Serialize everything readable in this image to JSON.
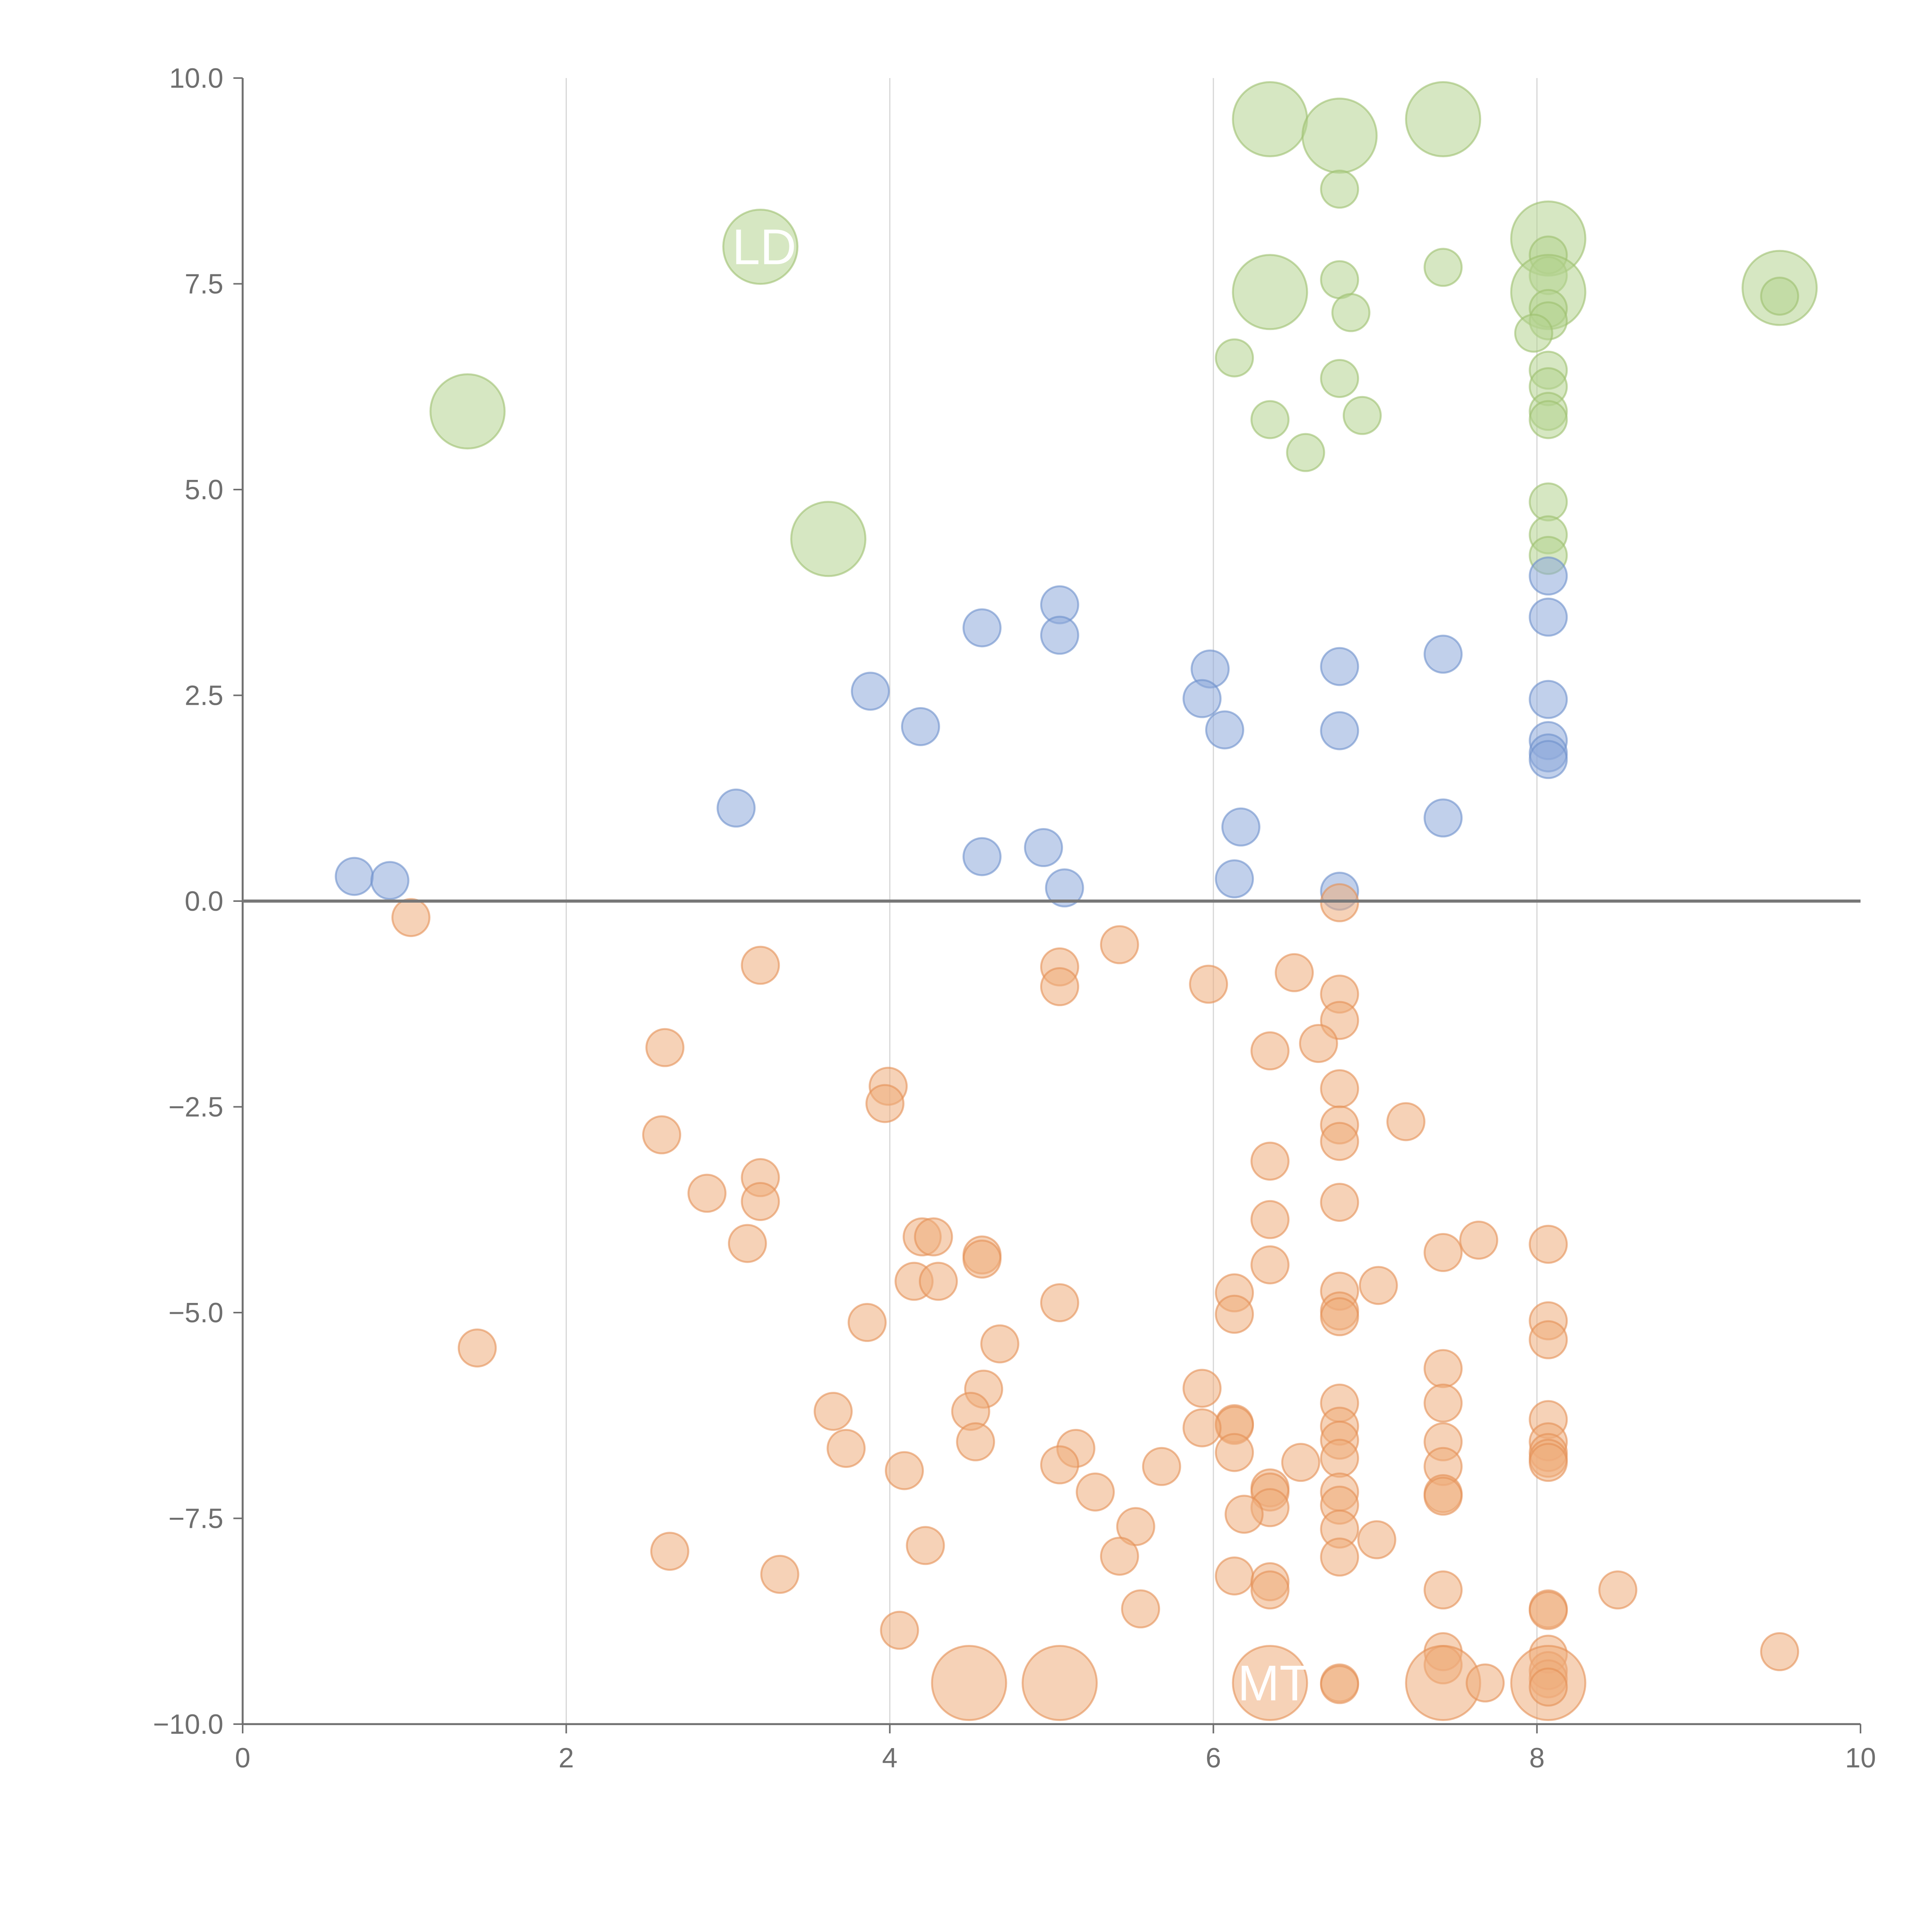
{
  "chart_data": {
    "type": "scatter",
    "title": "",
    "xlabel": "",
    "ylabel": "",
    "xlim": [
      0,
      10
    ],
    "ylim": [
      -10,
      10
    ],
    "x_ticks": [
      0,
      2,
      4,
      6,
      8,
      10
    ],
    "x_tick_labels": [
      "0",
      "2",
      "4",
      "6",
      "8",
      "10"
    ],
    "y_ticks": [
      -10,
      -7.5,
      -5,
      -2.5,
      0,
      2.5,
      5,
      7.5,
      10
    ],
    "y_tick_labels": [
      "−10.0",
      "−7.5",
      "−5.0",
      "−2.5",
      "0.0",
      "2.5",
      "5.0",
      "7.5",
      "10.0"
    ],
    "x_gridlines": [
      2,
      4,
      6,
      8
    ],
    "reference_line_y": 0,
    "colors": {
      "green_fill": "#b5d38f",
      "green_stroke": "#9cc06e",
      "blue_fill": "#8eaadb",
      "blue_stroke": "#6d8fcb",
      "orange_fill": "#eead7c",
      "orange_stroke": "#e48f55"
    },
    "series": [
      {
        "name": "green",
        "color": "#b5d38f",
        "points": [
          {
            "x": 6.35,
            "y": 9.5,
            "r": "lg"
          },
          {
            "x": 6.78,
            "y": 9.3,
            "r": "lg"
          },
          {
            "x": 7.42,
            "y": 9.5,
            "r": "lg"
          },
          {
            "x": 6.78,
            "y": 8.65
          },
          {
            "x": 3.2,
            "y": 7.95,
            "r": "lg"
          },
          {
            "x": 8.07,
            "y": 8.05,
            "r": "lg"
          },
          {
            "x": 8.07,
            "y": 7.85
          },
          {
            "x": 7.42,
            "y": 7.7
          },
          {
            "x": 6.78,
            "y": 7.55
          },
          {
            "x": 8.07,
            "y": 7.6
          },
          {
            "x": 6.35,
            "y": 7.4,
            "r": "lg"
          },
          {
            "x": 8.07,
            "y": 7.4,
            "r": "lg"
          },
          {
            "x": 9.5,
            "y": 7.45,
            "r": "lg"
          },
          {
            "x": 9.5,
            "y": 7.35
          },
          {
            "x": 8.07,
            "y": 7.2
          },
          {
            "x": 6.85,
            "y": 7.15
          },
          {
            "x": 8.07,
            "y": 7.05
          },
          {
            "x": 7.98,
            "y": 6.9
          },
          {
            "x": 6.13,
            "y": 6.6
          },
          {
            "x": 8.07,
            "y": 6.45
          },
          {
            "x": 6.78,
            "y": 6.35
          },
          {
            "x": 8.07,
            "y": 6.25
          },
          {
            "x": 1.39,
            "y": 5.95,
            "r": "lg"
          },
          {
            "x": 6.92,
            "y": 5.9
          },
          {
            "x": 8.07,
            "y": 5.95
          },
          {
            "x": 8.07,
            "y": 5.85
          },
          {
            "x": 6.35,
            "y": 5.85
          },
          {
            "x": 6.57,
            "y": 5.45
          },
          {
            "x": 8.07,
            "y": 4.85
          },
          {
            "x": 3.62,
            "y": 4.4,
            "r": "lg"
          },
          {
            "x": 8.07,
            "y": 4.45
          },
          {
            "x": 8.07,
            "y": 4.2
          }
        ]
      },
      {
        "name": "blue",
        "color": "#8eaadb",
        "points": [
          {
            "x": 8.07,
            "y": 3.95
          },
          {
            "x": 5.05,
            "y": 3.6
          },
          {
            "x": 8.07,
            "y": 3.45
          },
          {
            "x": 4.57,
            "y": 3.32
          },
          {
            "x": 5.05,
            "y": 3.23
          },
          {
            "x": 7.42,
            "y": 3.0
          },
          {
            "x": 6.78,
            "y": 2.85
          },
          {
            "x": 5.98,
            "y": 2.82
          },
          {
            "x": 3.88,
            "y": 2.55
          },
          {
            "x": 5.93,
            "y": 2.46
          },
          {
            "x": 8.07,
            "y": 2.45
          },
          {
            "x": 4.19,
            "y": 2.12
          },
          {
            "x": 6.07,
            "y": 2.08
          },
          {
            "x": 6.78,
            "y": 2.07
          },
          {
            "x": 8.07,
            "y": 1.95
          },
          {
            "x": 8.07,
            "y": 1.8
          },
          {
            "x": 8.07,
            "y": 1.72
          },
          {
            "x": 3.05,
            "y": 1.13
          },
          {
            "x": 7.42,
            "y": 1.01
          },
          {
            "x": 6.17,
            "y": 0.9
          },
          {
            "x": 4.95,
            "y": 0.65
          },
          {
            "x": 4.57,
            "y": 0.54
          },
          {
            "x": 0.69,
            "y": 0.3
          },
          {
            "x": 0.91,
            "y": 0.25
          },
          {
            "x": 6.13,
            "y": 0.27
          },
          {
            "x": 5.08,
            "y": 0.16
          },
          {
            "x": 6.78,
            "y": 0.12
          }
        ]
      },
      {
        "name": "orange",
        "color": "#eead7c",
        "points": [
          {
            "x": 6.78,
            "y": -0.02
          },
          {
            "x": 1.04,
            "y": -0.2
          },
          {
            "x": 5.42,
            "y": -0.53
          },
          {
            "x": 3.2,
            "y": -0.78
          },
          {
            "x": 5.05,
            "y": -0.8
          },
          {
            "x": 6.5,
            "y": -0.87
          },
          {
            "x": 5.97,
            "y": -1.01
          },
          {
            "x": 5.05,
            "y": -1.04
          },
          {
            "x": 6.78,
            "y": -1.13
          },
          {
            "x": 6.78,
            "y": -1.45
          },
          {
            "x": 6.65,
            "y": -1.73
          },
          {
            "x": 2.61,
            "y": -1.78
          },
          {
            "x": 6.35,
            "y": -1.82
          },
          {
            "x": 3.99,
            "y": -2.25
          },
          {
            "x": 6.78,
            "y": -2.28
          },
          {
            "x": 3.97,
            "y": -2.46
          },
          {
            "x": 7.19,
            "y": -2.68
          },
          {
            "x": 6.78,
            "y": -2.72
          },
          {
            "x": 2.59,
            "y": -2.84
          },
          {
            "x": 6.78,
            "y": -2.92
          },
          {
            "x": 6.35,
            "y": -3.16
          },
          {
            "x": 3.2,
            "y": -3.36
          },
          {
            "x": 2.87,
            "y": -3.55
          },
          {
            "x": 3.2,
            "y": -3.65
          },
          {
            "x": 6.78,
            "y": -3.66
          },
          {
            "x": 6.35,
            "y": -3.87
          },
          {
            "x": 4.2,
            "y": -4.08
          },
          {
            "x": 4.27,
            "y": -4.08
          },
          {
            "x": 7.64,
            "y": -4.12
          },
          {
            "x": 3.12,
            "y": -4.16
          },
          {
            "x": 8.07,
            "y": -4.17
          },
          {
            "x": 7.42,
            "y": -4.27
          },
          {
            "x": 4.57,
            "y": -4.3
          },
          {
            "x": 4.57,
            "y": -4.35
          },
          {
            "x": 6.35,
            "y": -4.42
          },
          {
            "x": 4.15,
            "y": -4.62
          },
          {
            "x": 4.3,
            "y": -4.62
          },
          {
            "x": 7.02,
            "y": -4.67
          },
          {
            "x": 6.13,
            "y": -4.76
          },
          {
            "x": 6.78,
            "y": -4.74
          },
          {
            "x": 5.05,
            "y": -4.88
          },
          {
            "x": 6.78,
            "y": -4.98
          },
          {
            "x": 6.78,
            "y": -5.05
          },
          {
            "x": 6.13,
            "y": -5.02
          },
          {
            "x": 8.07,
            "y": -5.1
          },
          {
            "x": 3.86,
            "y": -5.12
          },
          {
            "x": 8.07,
            "y": -5.33
          },
          {
            "x": 4.68,
            "y": -5.38
          },
          {
            "x": 1.45,
            "y": -5.43
          },
          {
            "x": 7.42,
            "y": -5.68
          },
          {
            "x": 5.93,
            "y": -5.92
          },
          {
            "x": 4.58,
            "y": -5.93
          },
          {
            "x": 6.78,
            "y": -6.1
          },
          {
            "x": 7.42,
            "y": -6.1
          },
          {
            "x": 3.65,
            "y": -6.2
          },
          {
            "x": 4.5,
            "y": -6.2
          },
          {
            "x": 8.07,
            "y": -6.3
          },
          {
            "x": 6.13,
            "y": -6.35
          },
          {
            "x": 6.13,
            "y": -6.37
          },
          {
            "x": 6.78,
            "y": -6.38
          },
          {
            "x": 5.93,
            "y": -6.4
          },
          {
            "x": 6.78,
            "y": -6.55
          },
          {
            "x": 4.53,
            "y": -6.57
          },
          {
            "x": 7.42,
            "y": -6.57
          },
          {
            "x": 8.07,
            "y": -6.57
          },
          {
            "x": 3.73,
            "y": -6.65
          },
          {
            "x": 5.15,
            "y": -6.65
          },
          {
            "x": 6.13,
            "y": -6.7
          },
          {
            "x": 8.07,
            "y": -6.7
          },
          {
            "x": 6.78,
            "y": -6.77
          },
          {
            "x": 8.07,
            "y": -6.77
          },
          {
            "x": 8.07,
            "y": -6.82
          },
          {
            "x": 6.54,
            "y": -6.82
          },
          {
            "x": 5.05,
            "y": -6.85
          },
          {
            "x": 5.68,
            "y": -6.87
          },
          {
            "x": 7.42,
            "y": -6.87
          },
          {
            "x": 4.09,
            "y": -6.92
          },
          {
            "x": 6.35,
            "y": -7.13
          },
          {
            "x": 6.35,
            "y": -7.18
          },
          {
            "x": 5.27,
            "y": -7.18
          },
          {
            "x": 6.78,
            "y": -7.18
          },
          {
            "x": 7.42,
            "y": -7.2
          },
          {
            "x": 7.42,
            "y": -7.23
          },
          {
            "x": 6.78,
            "y": -7.34
          },
          {
            "x": 6.35,
            "y": -7.37
          },
          {
            "x": 6.19,
            "y": -7.45
          },
          {
            "x": 5.52,
            "y": -7.6
          },
          {
            "x": 6.78,
            "y": -7.63
          },
          {
            "x": 7.01,
            "y": -7.76
          },
          {
            "x": 4.22,
            "y": -7.83
          },
          {
            "x": 2.64,
            "y": -7.9
          },
          {
            "x": 5.42,
            "y": -7.96
          },
          {
            "x": 6.78,
            "y": -7.97
          },
          {
            "x": 3.32,
            "y": -8.18
          },
          {
            "x": 6.13,
            "y": -8.2
          },
          {
            "x": 6.35,
            "y": -8.27
          },
          {
            "x": 6.35,
            "y": -8.37
          },
          {
            "x": 7.42,
            "y": -8.37
          },
          {
            "x": 8.5,
            "y": -8.37
          },
          {
            "x": 5.55,
            "y": -8.6
          },
          {
            "x": 8.07,
            "y": -8.6
          },
          {
            "x": 8.07,
            "y": -8.62
          },
          {
            "x": 4.06,
            "y": -8.86
          },
          {
            "x": 9.5,
            "y": -9.12
          },
          {
            "x": 7.42,
            "y": -9.12
          },
          {
            "x": 8.07,
            "y": -9.15
          },
          {
            "x": 7.42,
            "y": -9.28
          },
          {
            "x": 8.07,
            "y": -9.35
          },
          {
            "x": 8.07,
            "y": -9.45
          },
          {
            "x": 4.49,
            "y": -9.5,
            "r": "lg"
          },
          {
            "x": 5.05,
            "y": -9.5,
            "r": "lg"
          },
          {
            "x": 6.35,
            "y": -9.5,
            "r": "lg"
          },
          {
            "x": 7.42,
            "y": -9.5,
            "r": "lg"
          },
          {
            "x": 8.07,
            "y": -9.5,
            "r": "lg"
          },
          {
            "x": 6.78,
            "y": -9.5
          },
          {
            "x": 6.78,
            "y": -9.52
          },
          {
            "x": 7.68,
            "y": -9.5
          },
          {
            "x": 8.07,
            "y": -9.55
          }
        ]
      }
    ],
    "annotations": [
      {
        "text": "LD",
        "x": 3.2,
        "y": 7.95
      },
      {
        "text": "MT",
        "x": 6.35,
        "y": -9.5
      }
    ]
  }
}
